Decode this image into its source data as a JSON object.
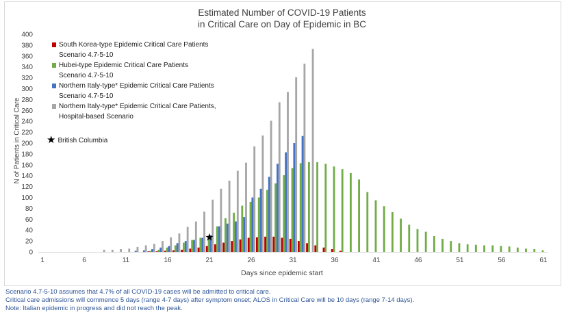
{
  "chart_data": {
    "type": "bar",
    "title_line1": "Estimated Number of COVID-19 Patients",
    "title_line2": "in Critical Care on Day of Epidemic in BC",
    "xlabel": "Days since epidemic start",
    "ylabel": "N of Patients in Critical Care",
    "ylim": [
      0,
      400
    ],
    "y_ticks": [
      0,
      20,
      40,
      60,
      80,
      100,
      120,
      140,
      160,
      180,
      200,
      220,
      240,
      260,
      280,
      300,
      320,
      340,
      360,
      380,
      400
    ],
    "x_tick_labels": [
      "1",
      "6",
      "11",
      "16",
      "21",
      "26",
      "31",
      "36",
      "41",
      "46",
      "51",
      "56",
      "61"
    ],
    "days": [
      1,
      2,
      3,
      4,
      5,
      6,
      7,
      8,
      9,
      10,
      11,
      12,
      13,
      14,
      15,
      16,
      17,
      18,
      19,
      20,
      21,
      22,
      23,
      24,
      25,
      26,
      27,
      28,
      29,
      30,
      31,
      32,
      33,
      34,
      35,
      36,
      37,
      38,
      39,
      40,
      41,
      42,
      43,
      44,
      45,
      46,
      47,
      48,
      49,
      50,
      51,
      52,
      53,
      54,
      55,
      56,
      57,
      58,
      59,
      60,
      61
    ],
    "grid": false,
    "legend_position": "top-left",
    "series": [
      {
        "name_line1": "South Korea-type Epidemic Critical Care Patients",
        "name_line2": "Scenario 4.7-5-10",
        "color": "#c00000",
        "values": [
          0,
          0,
          0,
          0,
          0,
          0,
          0,
          0,
          0,
          0,
          0,
          0,
          0,
          1,
          1,
          2,
          3,
          4,
          6,
          8,
          11,
          14,
          17,
          20,
          23,
          26,
          27,
          28,
          28,
          26,
          24,
          20,
          16,
          12,
          8,
          5,
          2,
          0,
          0,
          0,
          0,
          0,
          0,
          0,
          0,
          0,
          0,
          0,
          0,
          0,
          0,
          0,
          0,
          0,
          0,
          0,
          0,
          0,
          0,
          0,
          0
        ]
      },
      {
        "name_line1": "Hubei-type Epidemic Critical Care Patients",
        "name_line2": "Scenario 4.7-5-10",
        "color": "#70ad47",
        "values": [
          0,
          0,
          0,
          0,
          0,
          0,
          0,
          0,
          0,
          0,
          0,
          0,
          0,
          2,
          4,
          8,
          12,
          17,
          22,
          26,
          30,
          47,
          62,
          72,
          85,
          92,
          100,
          114,
          126,
          141,
          154,
          163,
          165,
          165,
          162,
          157,
          152,
          145,
          133,
          110,
          95,
          84,
          73,
          61,
          50,
          42,
          37,
          29,
          24,
          20,
          16,
          14,
          13,
          12,
          12,
          11,
          10,
          8,
          6,
          5,
          3
        ]
      },
      {
        "name_line1": "Northern Italy-type* Epidemic Critical Care Patients",
        "name_line2": "Scenario 4.7-5-10",
        "color": "#4472c4",
        "values": [
          0,
          0,
          0,
          0,
          0,
          0,
          0,
          0,
          0,
          0,
          0,
          2,
          3,
          5,
          8,
          11,
          16,
          20,
          22,
          26,
          31,
          47,
          52,
          56,
          64,
          100,
          116,
          138,
          162,
          183,
          200,
          213,
          0,
          0,
          0,
          0,
          0,
          0,
          0,
          0,
          0,
          0,
          0,
          0,
          0,
          0,
          0,
          0,
          0,
          0,
          0,
          0,
          0,
          0,
          0,
          0,
          0,
          0,
          0,
          0,
          0
        ]
      },
      {
        "name_line1": "Northern Italy-type* Epidemic Critical Care Patients,",
        "name_line2": "Hospital-based Scenario",
        "color": "#a6a6a6",
        "values": [
          0,
          0,
          0,
          0,
          0,
          0,
          0,
          4,
          4,
          5,
          6,
          9,
          12,
          15,
          20,
          27,
          34,
          46,
          56,
          74,
          96,
          116,
          131,
          149,
          164,
          194,
          214,
          241,
          275,
          294,
          321,
          346,
          373,
          0,
          0,
          0,
          0,
          0,
          0,
          0,
          0,
          0,
          0,
          0,
          0,
          0,
          0,
          0,
          0,
          0,
          0,
          0,
          0,
          0,
          0,
          0,
          0,
          0,
          0,
          0,
          0
        ]
      }
    ],
    "marker": {
      "label": "British Columbia",
      "day": 21,
      "value": 27
    }
  },
  "notes": [
    "Scenario 4.7-5-10 assumes that 4.7% of all COVID-19 cases will be admitted to critical care.",
    "Critical care admissions will commence 5 days (range 4-7 days) after symptom onset; ALOS in Critical Care will be 10 days (range 7-14 days).",
    "Note: Italian epidemic in progress and did not reach the peak."
  ]
}
